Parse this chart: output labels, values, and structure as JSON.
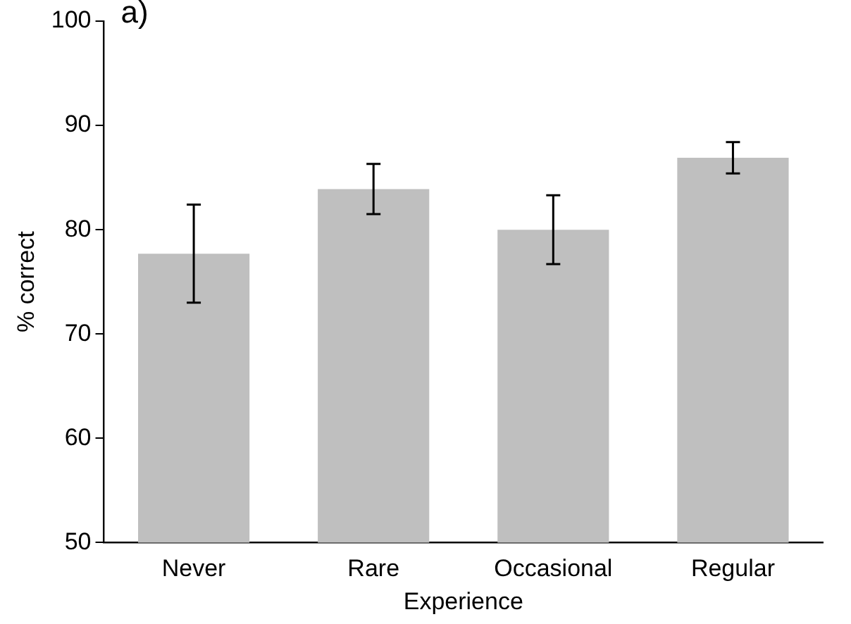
{
  "chart_data": {
    "type": "bar",
    "xlabel": "Experience",
    "ylabel": "% correct",
    "annotations": [
      "a)"
    ],
    "categories": [
      "Never",
      "Rare",
      "Occasional",
      "Regular"
    ],
    "values": [
      77.7,
      83.9,
      80.0,
      86.9
    ],
    "errors": [
      4.7,
      2.4,
      3.3,
      1.5
    ],
    "color": "#bfbfbf",
    "ylim": [
      50,
      100
    ],
    "yticks": [
      50,
      60,
      70,
      80,
      90,
      100
    ],
    "grid": false,
    "legend": false
  }
}
